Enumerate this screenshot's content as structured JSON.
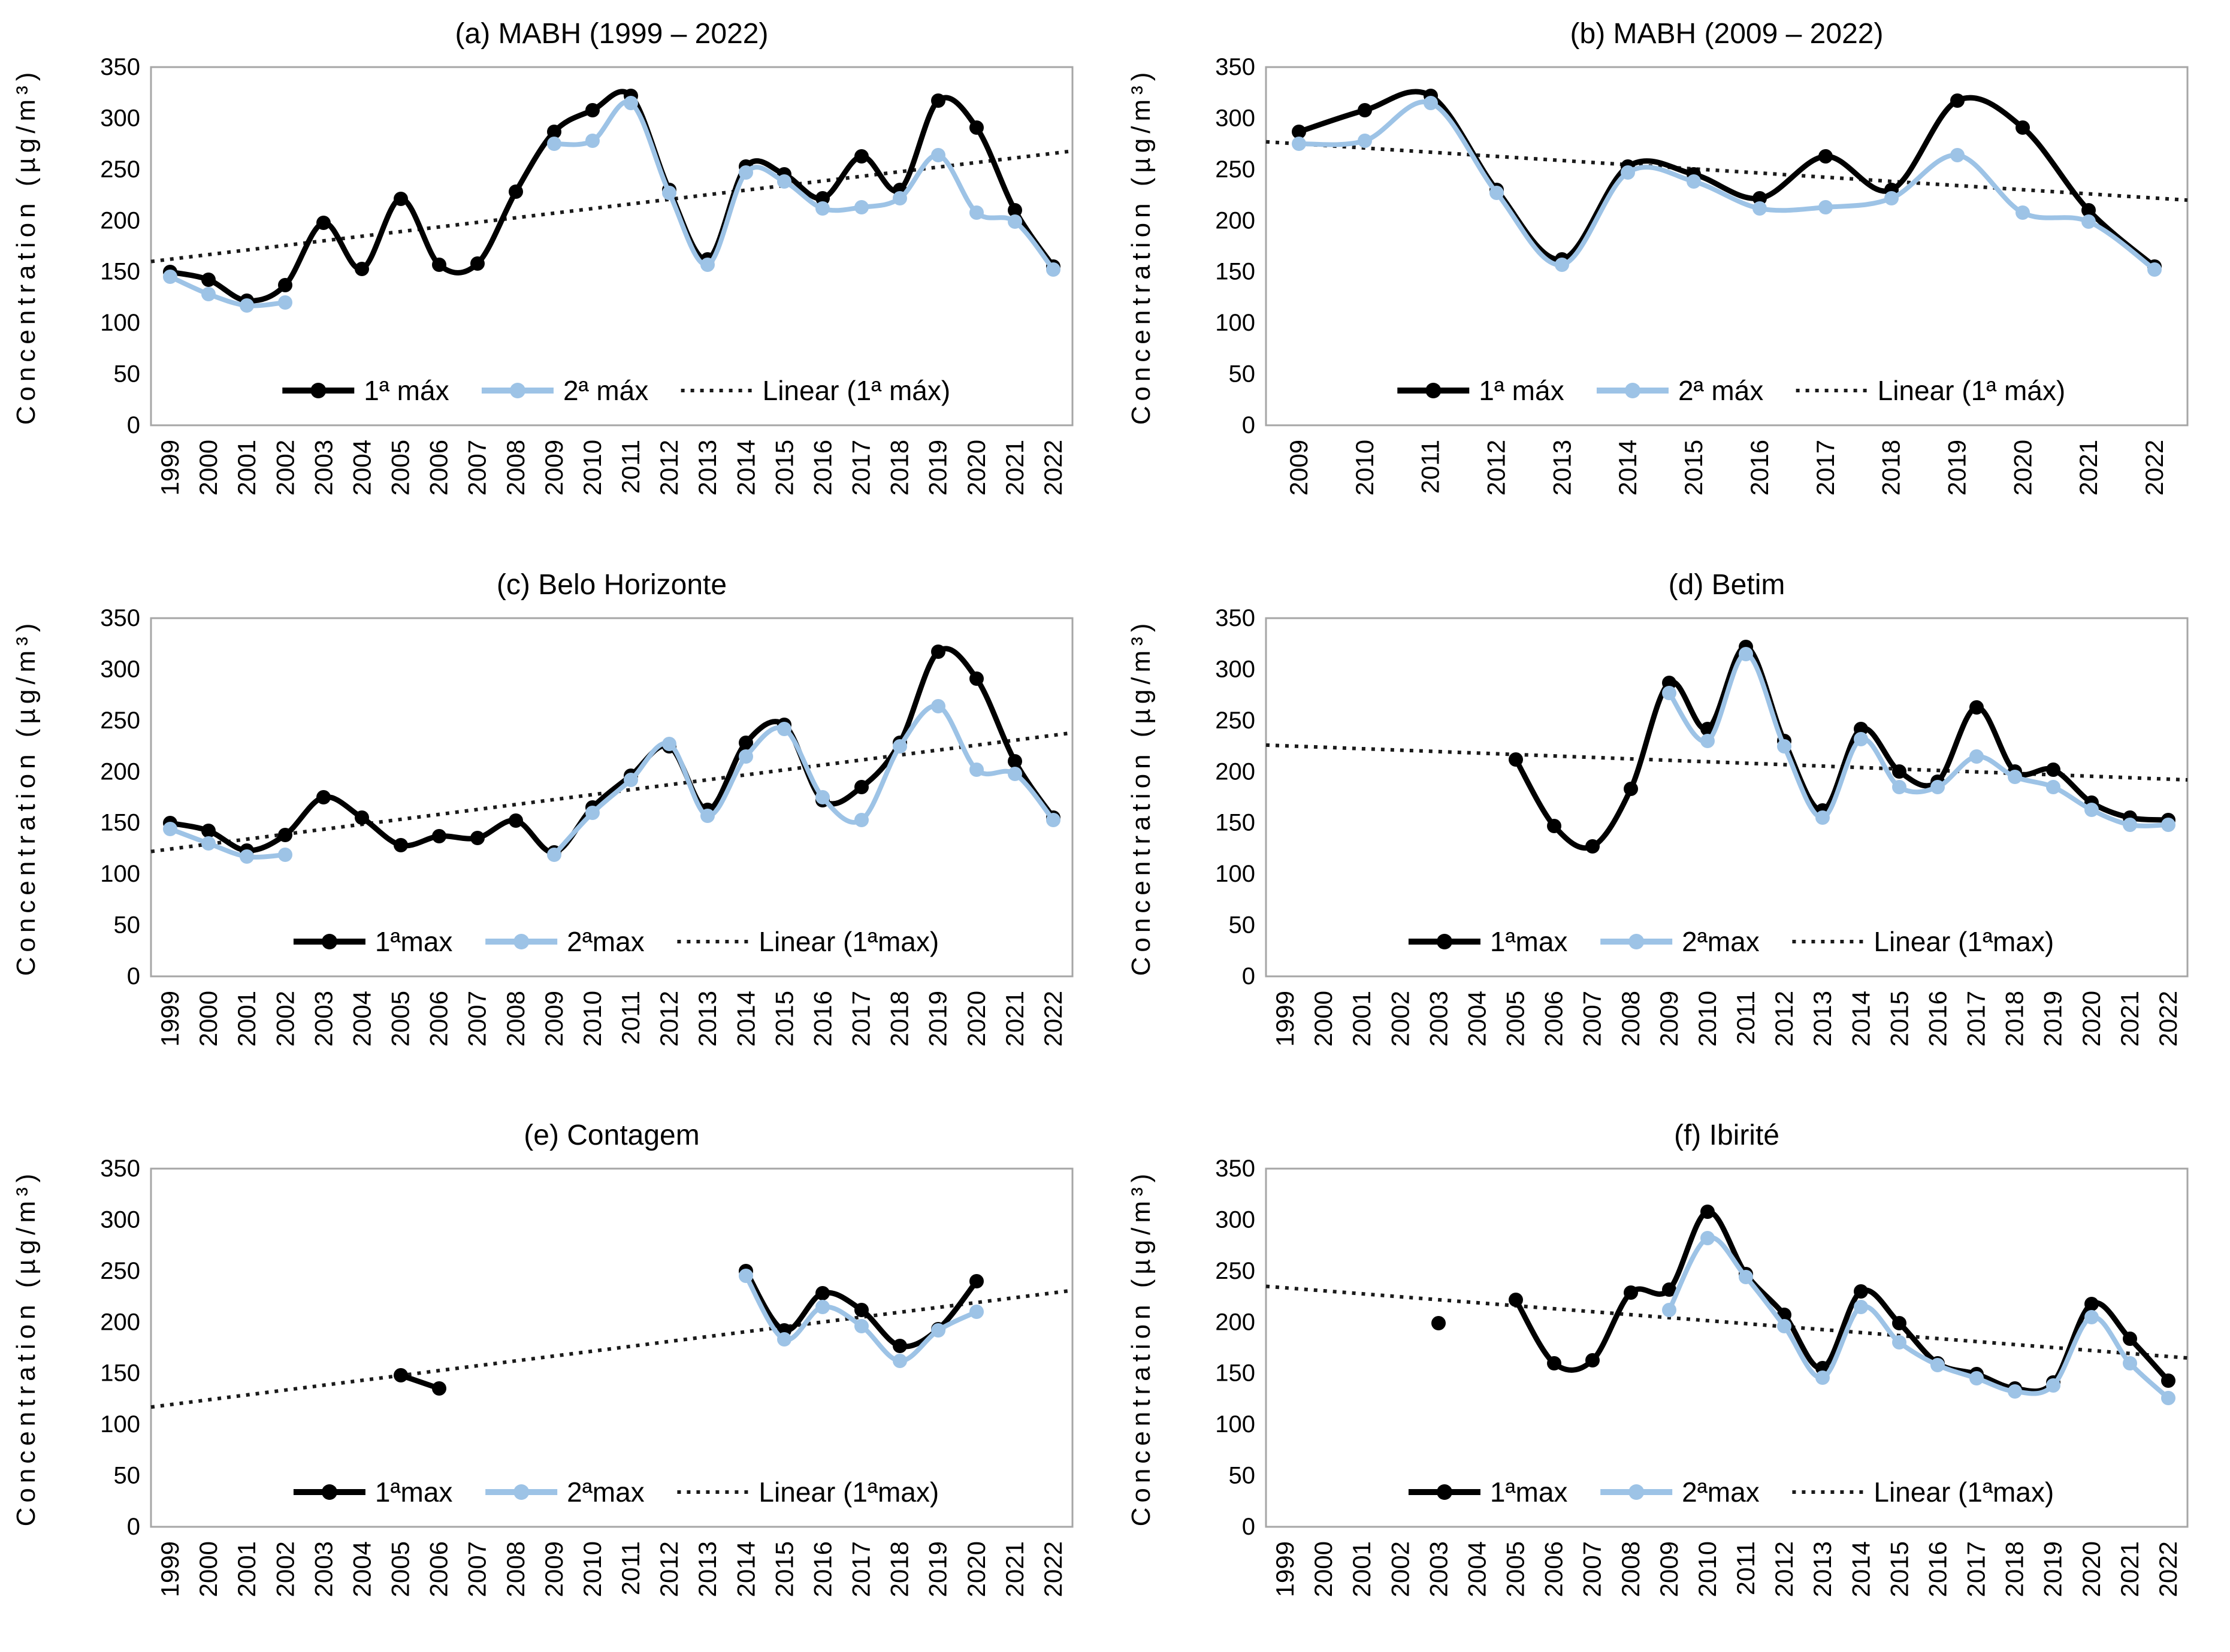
{
  "figure": {
    "y_axis_label": "Concentration (µg/m³)",
    "y_ticks": [
      0,
      50,
      100,
      150,
      200,
      250,
      300,
      350
    ],
    "y_max": 350,
    "colors": {
      "max1": "#000000",
      "max2": "#9DC3E6",
      "trend": "#1a1a1a",
      "plot_border": "#a6a6a6",
      "text": "#000000"
    },
    "legend_position": "bottom-center",
    "grid": "off"
  },
  "chart_data": [
    {
      "id": "a",
      "type": "line",
      "title": "(a) MABH (1999 – 2022)",
      "ylabel": "Concentration (µg/m³)",
      "ylim": [
        0,
        350
      ],
      "categories": [
        "1999",
        "2000",
        "2001",
        "2002",
        "2003",
        "2004",
        "2005",
        "2006",
        "2007",
        "2008",
        "2009",
        "2010",
        "2011",
        "2012",
        "2013",
        "2014",
        "2015",
        "2016",
        "2017",
        "2018",
        "2019",
        "2020",
        "2021",
        "2022"
      ],
      "legend": [
        "1ª máx",
        "2ª máx",
        "Linear (1ª máx)"
      ],
      "series": [
        {
          "name": "1ª máx",
          "color": "#000000",
          "values": [
            150,
            142,
            122,
            137,
            198,
            153,
            221,
            157,
            158,
            228,
            287,
            308,
            322,
            230,
            162,
            253,
            245,
            222,
            263,
            230,
            317,
            291,
            210,
            155
          ]
        },
        {
          "name": "2ª máx",
          "color": "#9DC3E6",
          "values": [
            145,
            128,
            117,
            120,
            null,
            null,
            null,
            null,
            null,
            null,
            275,
            278,
            315,
            227,
            157,
            247,
            238,
            212,
            213,
            222,
            264,
            208,
            199,
            152
          ]
        }
      ],
      "trend": {
        "name": "Linear (1ª máx)",
        "start": 160,
        "end": 268
      }
    },
    {
      "id": "b",
      "type": "line",
      "title": "(b) MABH (2009 – 2022)",
      "ylabel": "Concentration (µg/m³)",
      "ylim": [
        0,
        350
      ],
      "categories": [
        "2009",
        "2010",
        "2011",
        "2012",
        "2013",
        "2014",
        "2015",
        "2016",
        "2017",
        "2018",
        "2019",
        "2020",
        "2021",
        "2022"
      ],
      "legend": [
        "1ª máx",
        "2ª máx",
        "Linear (1ª máx)"
      ],
      "series": [
        {
          "name": "1ª máx",
          "color": "#000000",
          "values": [
            287,
            308,
            322,
            230,
            162,
            253,
            245,
            222,
            263,
            230,
            317,
            291,
            210,
            155
          ]
        },
        {
          "name": "2ª máx",
          "color": "#9DC3E6",
          "values": [
            275,
            278,
            315,
            227,
            157,
            247,
            238,
            212,
            213,
            222,
            264,
            208,
            199,
            152
          ]
        }
      ],
      "trend": {
        "name": "Linear (1ª máx)",
        "start": 277,
        "end": 220
      }
    },
    {
      "id": "c",
      "type": "line",
      "title": "(c) Belo Horizonte",
      "ylabel": "Concentration (µg/m³)",
      "ylim": [
        0,
        350
      ],
      "categories": [
        "1999",
        "2000",
        "2001",
        "2002",
        "2003",
        "2004",
        "2005",
        "2006",
        "2007",
        "2008",
        "2009",
        "2010",
        "2011",
        "2012",
        "2013",
        "2014",
        "2015",
        "2016",
        "2017",
        "2018",
        "2019",
        "2020",
        "2021",
        "2022"
      ],
      "legend": [
        "1ªmax",
        "2ªmax",
        "Linear (1ªmax)"
      ],
      "series": [
        {
          "name": "1ªmax",
          "color": "#000000",
          "values": [
            150,
            142,
            123,
            138,
            175,
            155,
            128,
            137,
            135,
            152,
            121,
            165,
            196,
            225,
            163,
            228,
            246,
            172,
            185,
            228,
            317,
            291,
            210,
            155
          ]
        },
        {
          "name": "2ªmax",
          "color": "#9DC3E6",
          "values": [
            144,
            130,
            117,
            119,
            null,
            null,
            null,
            null,
            null,
            null,
            119,
            160,
            192,
            227,
            157,
            215,
            242,
            175,
            153,
            225,
            264,
            202,
            198,
            153
          ]
        }
      ],
      "trend": {
        "name": "Linear (1ªmax)",
        "start": 122,
        "end": 238
      }
    },
    {
      "id": "d",
      "type": "line",
      "title": "(d) Betim",
      "ylabel": "Concentration (µg/m³)",
      "ylim": [
        0,
        350
      ],
      "categories": [
        "1999",
        "2000",
        "2001",
        "2002",
        "2003",
        "2004",
        "2005",
        "2006",
        "2007",
        "2008",
        "2009",
        "2010",
        "2011",
        "2012",
        "2013",
        "2014",
        "2015",
        "2016",
        "2017",
        "2018",
        "2019",
        "2020",
        "2021",
        "2022"
      ],
      "legend": [
        "1ªmax",
        "2ªmax",
        "Linear (1ªmax)"
      ],
      "series": [
        {
          "name": "1ªmax",
          "color": "#000000",
          "values": [
            null,
            null,
            null,
            null,
            null,
            null,
            212,
            147,
            127,
            183,
            287,
            242,
            322,
            230,
            162,
            242,
            200,
            190,
            263,
            200,
            202,
            170,
            155,
            153
          ]
        },
        {
          "name": "2ªmax",
          "color": "#9DC3E6",
          "values": [
            null,
            null,
            null,
            null,
            null,
            null,
            null,
            null,
            null,
            null,
            277,
            230,
            315,
            225,
            155,
            232,
            185,
            185,
            215,
            195,
            185,
            163,
            148,
            148
          ]
        }
      ],
      "trend": {
        "name": "Linear (1ªmax)",
        "start": 226,
        "end": 192
      }
    },
    {
      "id": "e",
      "type": "line",
      "title": "(e) Contagem",
      "ylabel": "Concentration (µg/m³)",
      "ylim": [
        0,
        350
      ],
      "categories": [
        "1999",
        "2000",
        "2001",
        "2002",
        "2003",
        "2004",
        "2005",
        "2006",
        "2007",
        "2008",
        "2009",
        "2010",
        "2011",
        "2012",
        "2013",
        "2014",
        "2015",
        "2016",
        "2017",
        "2018",
        "2019",
        "2020",
        "2021",
        "2022"
      ],
      "legend": [
        "1ªmax",
        "2ªmax",
        "Linear (1ªmax)"
      ],
      "series": [
        {
          "name": "1ªmax",
          "color": "#000000",
          "values": [
            null,
            null,
            null,
            null,
            null,
            null,
            148,
            135,
            null,
            null,
            null,
            null,
            null,
            null,
            null,
            250,
            192,
            228,
            212,
            177,
            193,
            240,
            null,
            null
          ]
        },
        {
          "name": "2ªmax",
          "color": "#9DC3E6",
          "values": [
            null,
            null,
            null,
            null,
            null,
            null,
            null,
            null,
            null,
            null,
            null,
            null,
            null,
            null,
            null,
            245,
            183,
            215,
            196,
            162,
            192,
            210,
            null,
            null
          ]
        }
      ],
      "trend": {
        "name": "Linear (1ªmax)",
        "start": 117,
        "end": 231
      }
    },
    {
      "id": "f",
      "type": "line",
      "title": "(f) Ibirité",
      "ylabel": "Concentration (µg/m³)",
      "ylim": [
        0,
        350
      ],
      "categories": [
        "1999",
        "2000",
        "2001",
        "2002",
        "2003",
        "2004",
        "2005",
        "2006",
        "2007",
        "2008",
        "2009",
        "2010",
        "2011",
        "2012",
        "2013",
        "2014",
        "2015",
        "2016",
        "2017",
        "2018",
        "2019",
        "2020",
        "2021",
        "2022"
      ],
      "legend": [
        "1ªmax",
        "2ªmax",
        "Linear (1ªmax)"
      ],
      "series": [
        {
          "name": "1ªmax",
          "color": "#000000",
          "values": [
            null,
            null,
            null,
            null,
            199,
            null,
            222,
            160,
            163,
            229,
            232,
            308,
            247,
            207,
            155,
            230,
            199,
            160,
            149,
            135,
            141,
            218,
            184,
            143
          ]
        },
        {
          "name": "2ªmax",
          "color": "#9DC3E6",
          "values": [
            null,
            null,
            null,
            null,
            null,
            null,
            null,
            null,
            null,
            null,
            212,
            282,
            244,
            196,
            146,
            215,
            180,
            158,
            145,
            132,
            138,
            205,
            160,
            126
          ]
        }
      ],
      "trend": {
        "name": "Linear (1ªmax)",
        "start": 235,
        "end": 165
      }
    }
  ]
}
